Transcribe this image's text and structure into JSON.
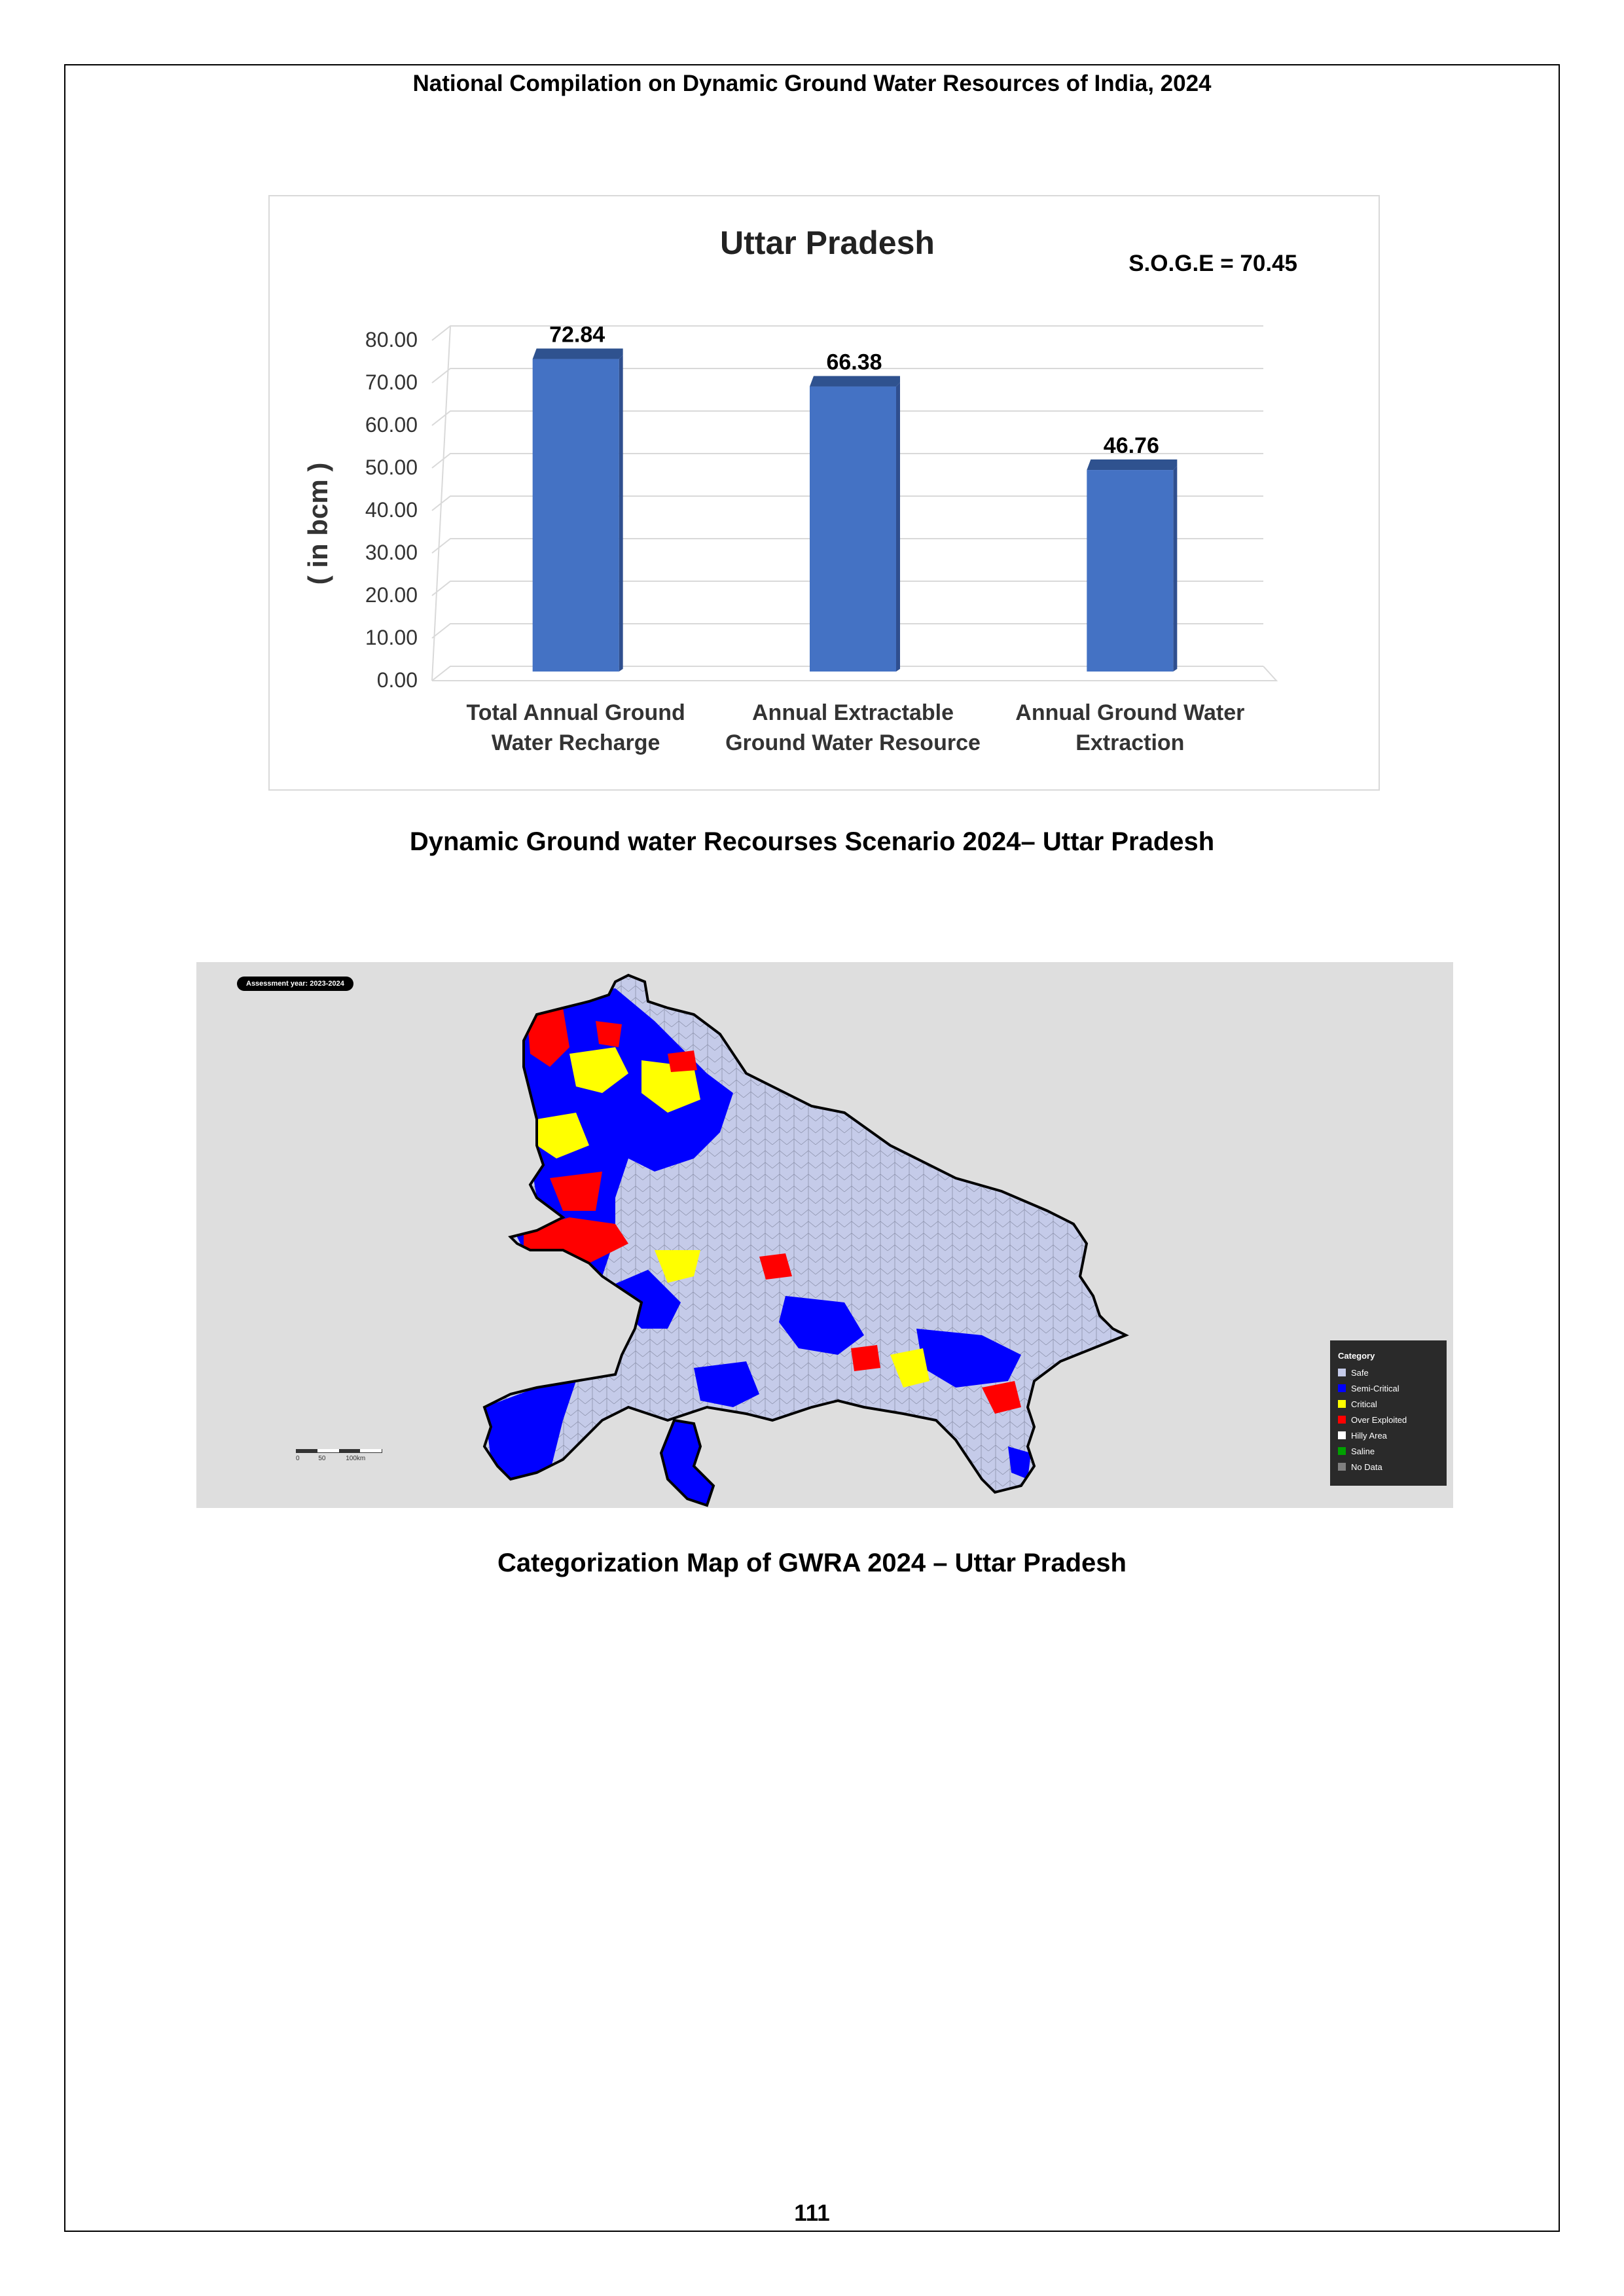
{
  "header": "National Compilation on Dynamic Ground Water Resources of India, 2024",
  "chart_data": {
    "type": "bar",
    "title": "Uttar Pradesh",
    "annotation": "S.O.G.E =  70.45",
    "ylabel": "( in bcm )",
    "ylim": [
      0,
      80
    ],
    "yticks": [
      "0.00",
      "10.00",
      "20.00",
      "30.00",
      "40.00",
      "50.00",
      "60.00",
      "70.00",
      "80.00"
    ],
    "categories": [
      [
        "Total Annual  Ground",
        "Water Recharge"
      ],
      [
        "Annual Extractable",
        "Ground Water Resource"
      ],
      [
        "Annual Ground Water",
        "Extraction"
      ]
    ],
    "values": [
      72.84,
      66.38,
      46.76
    ],
    "data_labels": [
      "72.84",
      "66.38",
      "46.76"
    ],
    "bar_color": "#4472c4",
    "grid": true
  },
  "chart_caption": "Dynamic Ground water Recourses Scenario 2024– Uttar Pradesh",
  "map": {
    "assessment_label": "Assessment year: 2023-2024",
    "legend_title": "Category",
    "legend": [
      {
        "label": "Safe",
        "color": "#c5cbe9"
      },
      {
        "label": "Semi-Critical",
        "color": "#0000ff"
      },
      {
        "label": "Critical",
        "color": "#ffff00"
      },
      {
        "label": "Over Exploited",
        "color": "#ff0000"
      },
      {
        "label": "Hilly Area",
        "color": "#ffffff"
      },
      {
        "label": "Saline",
        "color": "#00a000"
      },
      {
        "label": "No Data",
        "color": "#808080"
      }
    ],
    "scale_labels": [
      "0",
      "50",
      "100km"
    ]
  },
  "map_caption": "Categorization Map of GWRA 2024 – Uttar Pradesh",
  "page_number": "111"
}
